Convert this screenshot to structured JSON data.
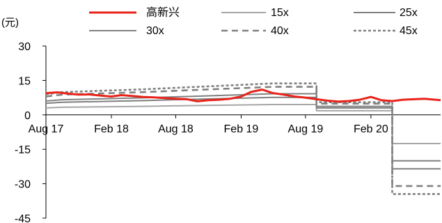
{
  "chart_data": {
    "type": "line",
    "unit_label": "(元)",
    "y_ticks": [
      30,
      15,
      0,
      -15,
      -30,
      -45
    ],
    "ylim": [
      -45,
      30
    ],
    "x_ticks": [
      "Aug 17",
      "Feb 18",
      "Aug 18",
      "Feb 19",
      "Aug 19",
      "Feb 20"
    ],
    "x_tick_dates": [
      "2017-08-01",
      "2018-02-01",
      "2018-08-01",
      "2019-02-01",
      "2019-08-01",
      "2020-02-01"
    ],
    "xlim": [
      "2017-08-01",
      "2020-08-15"
    ],
    "grid": false,
    "legend_position": "top",
    "series": [
      {
        "name": "高新兴",
        "color": "#e8231a",
        "style": "solid",
        "points": [
          [
            "2017-08-01",
            9.4
          ],
          [
            "2017-09-01",
            9.8
          ],
          [
            "2017-10-01",
            9.3
          ],
          [
            "2017-11-01",
            8.8
          ],
          [
            "2017-12-01",
            8.9
          ],
          [
            "2018-01-01",
            8.4
          ],
          [
            "2018-02-01",
            8.0
          ],
          [
            "2018-03-01",
            8.6
          ],
          [
            "2018-04-01",
            8.2
          ],
          [
            "2018-05-01",
            7.8
          ],
          [
            "2018-06-01",
            7.6
          ],
          [
            "2018-07-01",
            7.3
          ],
          [
            "2018-08-01",
            7.0
          ],
          [
            "2018-09-01",
            6.8
          ],
          [
            "2018-10-01",
            5.9
          ],
          [
            "2018-11-01",
            6.4
          ],
          [
            "2018-12-01",
            6.6
          ],
          [
            "2019-01-01",
            7.0
          ],
          [
            "2019-02-01",
            8.0
          ],
          [
            "2019-03-01",
            10.0
          ],
          [
            "2019-04-01",
            11.0
          ],
          [
            "2019-05-01",
            9.5
          ],
          [
            "2019-06-01",
            8.8
          ],
          [
            "2019-07-01",
            8.0
          ],
          [
            "2019-08-01",
            7.5
          ],
          [
            "2019-09-01",
            6.8
          ],
          [
            "2019-10-01",
            6.2
          ],
          [
            "2019-11-01",
            5.8
          ],
          [
            "2019-12-01",
            6.0
          ],
          [
            "2020-01-01",
            6.6
          ],
          [
            "2020-02-01",
            7.8
          ],
          [
            "2020-03-01",
            6.4
          ],
          [
            "2020-04-01",
            6.0
          ],
          [
            "2020-05-01",
            6.6
          ],
          [
            "2020-06-01",
            6.8
          ],
          [
            "2020-07-01",
            7.0
          ],
          [
            "2020-08-15",
            6.4
          ]
        ]
      },
      {
        "name": "15x",
        "color": "#a6a6a6",
        "style": "solid",
        "points": [
          [
            "2017-08-01",
            3.0
          ],
          [
            "2017-09-15",
            3.3
          ],
          [
            "2018-05-01",
            3.7
          ],
          [
            "2018-09-01",
            4.0
          ],
          [
            "2019-05-01",
            4.5
          ],
          [
            "2019-09-01",
            4.5
          ],
          [
            "2019-09-01",
            1.8
          ],
          [
            "2020-04-01",
            1.8
          ],
          [
            "2020-04-01",
            -12.5
          ],
          [
            "2020-08-15",
            -12.5
          ]
        ]
      },
      {
        "name": "25x",
        "color": "#7f7f7f",
        "style": "solid",
        "points": [
          [
            "2017-08-01",
            5.0
          ],
          [
            "2017-09-15",
            5.5
          ],
          [
            "2018-05-01",
            6.2
          ],
          [
            "2018-09-01",
            6.7
          ],
          [
            "2019-05-01",
            7.6
          ],
          [
            "2019-09-01",
            7.6
          ],
          [
            "2019-09-01",
            3.0
          ],
          [
            "2020-04-01",
            3.0
          ],
          [
            "2020-04-01",
            -20.0
          ],
          [
            "2020-08-15",
            -20.0
          ]
        ]
      },
      {
        "name": "30x",
        "color": "#808080",
        "style": "solid",
        "points": [
          [
            "2017-08-01",
            6.0
          ],
          [
            "2017-09-15",
            6.6
          ],
          [
            "2018-05-01",
            7.4
          ],
          [
            "2018-09-01",
            8.0
          ],
          [
            "2019-05-01",
            9.2
          ],
          [
            "2019-09-01",
            9.2
          ],
          [
            "2019-09-01",
            3.7
          ],
          [
            "2020-04-01",
            3.7
          ],
          [
            "2020-04-01",
            -23.5
          ],
          [
            "2020-08-15",
            -23.5
          ]
        ]
      },
      {
        "name": "40x",
        "color": "#808080",
        "style": "dashed",
        "points": [
          [
            "2017-08-01",
            8.0
          ],
          [
            "2017-09-15",
            8.8
          ],
          [
            "2018-05-01",
            9.9
          ],
          [
            "2018-09-01",
            10.7
          ],
          [
            "2019-05-01",
            12.2
          ],
          [
            "2019-09-01",
            12.2
          ],
          [
            "2019-09-01",
            4.9
          ],
          [
            "2020-04-01",
            4.9
          ],
          [
            "2020-04-01",
            -31.0
          ],
          [
            "2020-08-15",
            -31.0
          ]
        ]
      },
      {
        "name": "45x",
        "color": "#808080",
        "style": "dotted",
        "points": [
          [
            "2017-08-01",
            9.0
          ],
          [
            "2017-09-15",
            9.9
          ],
          [
            "2018-05-01",
            11.1
          ],
          [
            "2018-09-01",
            12.0
          ],
          [
            "2019-05-01",
            13.7
          ],
          [
            "2019-09-01",
            13.7
          ],
          [
            "2019-09-01",
            5.5
          ],
          [
            "2020-04-01",
            5.5
          ],
          [
            "2020-04-01",
            -34.5
          ],
          [
            "2020-08-15",
            -34.5
          ]
        ]
      }
    ]
  }
}
